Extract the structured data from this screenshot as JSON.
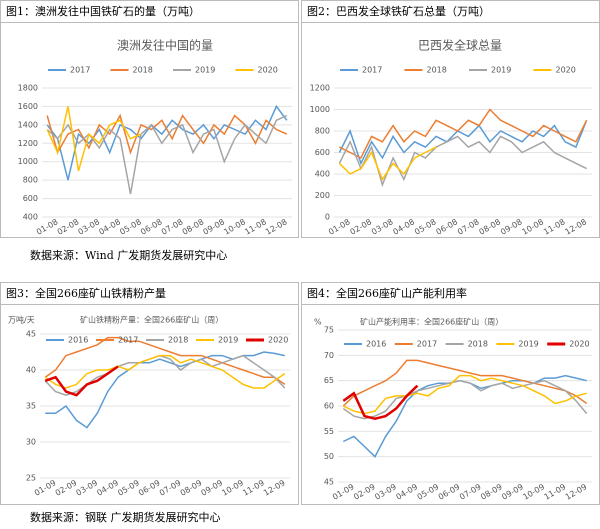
{
  "figure_headers": [
    "图1：澳洲发往中国铁矿石的量（万吨）",
    "图2：巴西发全球铁矿石总量（万吨）",
    "图3：全国266座矿山铁精粉产量",
    "图4：全国266座矿山产能利用率"
  ],
  "sources": [
    "数据来源：Wind 广发期货发展研究中心",
    "数据来源：钢联 广发期货发展研究中心"
  ],
  "chart_data": [
    {
      "type": "line",
      "title": "澳洲发往中国的量",
      "categories": [
        "01-08",
        null,
        "02-08",
        null,
        "03-08",
        null,
        "04-08",
        null,
        "05-08",
        null,
        "06-08",
        null,
        "07-08",
        null,
        "08-08",
        null,
        "09-08",
        null,
        "10-08",
        null,
        "11-08",
        null,
        "12-08",
        null
      ],
      "series": [
        {
          "name": "2017",
          "color": "#5b9bd5",
          "values": [
            1400,
            1250,
            800,
            1300,
            1200,
            1350,
            1100,
            1400,
            1350,
            1250,
            1400,
            1300,
            1450,
            1350,
            1300,
            1400,
            1250,
            1400,
            1350,
            1300,
            1450,
            1350,
            1600,
            1450
          ]
        },
        {
          "name": "2018",
          "color": "#ed7d31",
          "values": [
            1500,
            1100,
            1300,
            1350,
            1150,
            1400,
            1300,
            1500,
            1100,
            1400,
            1350,
            1450,
            1250,
            1500,
            1350,
            1200,
            1400,
            1300,
            1500,
            1400,
            1200,
            1450,
            1350,
            1300
          ]
        },
        {
          "name": "2019",
          "color": "#a5a5a5",
          "values": [
            1350,
            1250,
            1400,
            1200,
            1300,
            1150,
            1350,
            1250,
            650,
            1300,
            1400,
            1200,
            1350,
            1400,
            1100,
            1300,
            1350,
            1000,
            1250,
            1400,
            1300,
            1200,
            1450,
            1500
          ]
        },
        {
          "name": "2020",
          "color": "#ffc000",
          "values": [
            1350,
            1100,
            1600,
            900,
            1300,
            1200,
            1400,
            1450,
            1250,
            1300,
            null,
            null,
            null,
            null,
            null,
            null,
            null,
            null,
            null,
            null,
            null,
            null,
            null,
            null
          ]
        }
      ],
      "ylim": [
        400,
        1800
      ],
      "yticks": [
        400,
        600,
        800,
        1000,
        1200,
        1400,
        1600,
        1800
      ]
    },
    {
      "type": "line",
      "title": "巴西发全球总量",
      "categories": [
        "01-08",
        null,
        "02-08",
        null,
        "03-08",
        null,
        "04-08",
        null,
        "05-08",
        null,
        "06-08",
        null,
        "07-08",
        null,
        "08-08",
        null,
        "09-08",
        null,
        "10-08",
        null,
        "11-08",
        null,
        "12-08",
        null
      ],
      "series": [
        {
          "name": "2017",
          "color": "#5b9bd5",
          "values": [
            600,
            800,
            500,
            700,
            550,
            750,
            600,
            700,
            650,
            750,
            700,
            800,
            750,
            850,
            700,
            800,
            750,
            700,
            800,
            750,
            850,
            700,
            650,
            900
          ]
        },
        {
          "name": "2018",
          "color": "#ed7d31",
          "values": [
            650,
            600,
            550,
            750,
            700,
            850,
            700,
            800,
            750,
            900,
            850,
            800,
            900,
            850,
            1000,
            900,
            850,
            800,
            750,
            850,
            800,
            750,
            700,
            900
          ]
        },
        {
          "name": "2019",
          "color": "#a5a5a5",
          "values": [
            500,
            700,
            450,
            650,
            300,
            550,
            350,
            600,
            550,
            650,
            700,
            750,
            650,
            700,
            600,
            750,
            700,
            600,
            650,
            700,
            600,
            550,
            500,
            450
          ]
        },
        {
          "name": "2020",
          "color": "#ffc000",
          "values": [
            500,
            400,
            450,
            600,
            350,
            500,
            400,
            550,
            600,
            650,
            null,
            null,
            null,
            null,
            null,
            null,
            null,
            null,
            null,
            null,
            null,
            null,
            null,
            null
          ]
        }
      ],
      "ylim": [
        0,
        1200
      ],
      "yticks": [
        0,
        200,
        400,
        600,
        800,
        1000,
        1200
      ]
    },
    {
      "type": "line",
      "title": "矿山铁精粉产量：全国266座矿山（周）",
      "y_label": "万吨/天",
      "categories": [
        "01-09",
        null,
        "02-09",
        null,
        "03-09",
        null,
        "04-09",
        null,
        "05-09",
        null,
        "06-09",
        null,
        "07-09",
        null,
        "08-09",
        null,
        "09-09",
        null,
        "10-09",
        null,
        "11-09",
        null,
        "12-09",
        null
      ],
      "series": [
        {
          "name": "2016",
          "color": "#5b9bd5",
          "values": [
            34,
            34,
            35,
            33,
            32,
            34,
            37,
            39,
            40,
            41,
            41,
            41.5,
            41,
            40.5,
            41,
            41.5,
            42,
            42,
            41.5,
            42,
            42,
            42.5,
            42.3,
            42
          ]
        },
        {
          "name": "2017",
          "color": "#ed7d31",
          "values": [
            39,
            40,
            42,
            42.5,
            43,
            43.5,
            44.5,
            44.5,
            44,
            44,
            43.5,
            43,
            42.5,
            42,
            42,
            42,
            41.5,
            41,
            40.5,
            40,
            39.5,
            39,
            39,
            38
          ]
        },
        {
          "name": "2018",
          "color": "#a5a5a5",
          "values": [
            38.5,
            37,
            36.5,
            37,
            38,
            39,
            39.5,
            40.5,
            41,
            41,
            41.5,
            42,
            41.5,
            40,
            41,
            41.5,
            40.5,
            41,
            41.5,
            42,
            41,
            40,
            39,
            37.5
          ]
        },
        {
          "name": "2019",
          "color": "#ffc000",
          "values": [
            39,
            38,
            37.5,
            38,
            39.5,
            40,
            40,
            40.5,
            40,
            41,
            41.5,
            42,
            42,
            41,
            41.5,
            41,
            40.5,
            40,
            39,
            38,
            37.5,
            37.5,
            38.5,
            39.5
          ]
        },
        {
          "name": "2020",
          "color": "#e00000",
          "values": [
            38.5,
            39,
            37,
            36.5,
            38,
            38.5,
            39.5,
            40.5,
            null,
            null,
            null,
            null,
            null,
            null,
            null,
            null,
            null,
            null,
            null,
            null,
            null,
            null,
            null,
            null
          ]
        }
      ],
      "ylim": [
        25,
        45
      ],
      "yticks": [
        25,
        30,
        35,
        40,
        45
      ]
    },
    {
      "type": "line",
      "title": "矿山产能利用率：全国266座矿山（周）",
      "y_label": "%",
      "categories": [
        "01-09",
        null,
        "02-09",
        null,
        "03-09",
        null,
        "04-09",
        null,
        "05-09",
        null,
        "06-09",
        null,
        "07-09",
        null,
        "08-09",
        null,
        "09-09",
        null,
        "10-09",
        null,
        "11-09",
        null,
        "12-09",
        null
      ],
      "series": [
        {
          "name": "2016",
          "color": "#5b9bd5",
          "values": [
            53,
            54,
            52,
            50,
            54,
            57,
            61,
            63,
            64,
            64.5,
            64.5,
            65,
            64.5,
            63.5,
            64,
            64.5,
            65,
            65,
            64.5,
            65.5,
            65.5,
            66,
            65.5,
            65
          ]
        },
        {
          "name": "2017",
          "color": "#ed7d31",
          "values": [
            60,
            62,
            63,
            64,
            65,
            66.5,
            69,
            69,
            68.5,
            68,
            67.5,
            67,
            66.5,
            66,
            66,
            66,
            65.5,
            65,
            64.5,
            64,
            63.5,
            63,
            62,
            60.5
          ]
        },
        {
          "name": "2018",
          "color": "#a5a5a5",
          "values": [
            59.5,
            58,
            57.5,
            58,
            59,
            61.5,
            62,
            63,
            63.5,
            64,
            64.5,
            65,
            64.5,
            63,
            64,
            64.5,
            63.5,
            64,
            64.5,
            65,
            64,
            63,
            61,
            58.5
          ]
        },
        {
          "name": "2019",
          "color": "#ffc000",
          "values": [
            60,
            59,
            58.5,
            59,
            61.5,
            62,
            62,
            62.5,
            62,
            63.5,
            64,
            66,
            66,
            65,
            65.5,
            65,
            64.5,
            64,
            63,
            62,
            60.5,
            61,
            62,
            62.5
          ]
        },
        {
          "name": "2020",
          "color": "#e00000",
          "values": [
            61,
            62.5,
            58,
            57.5,
            58,
            59.5,
            62,
            64,
            null,
            null,
            null,
            null,
            null,
            null,
            null,
            null,
            null,
            null,
            null,
            null,
            null,
            null,
            null,
            null
          ]
        }
      ],
      "ylim": [
        45,
        75
      ],
      "yticks": [
        45,
        50,
        55,
        60,
        65,
        70,
        75
      ]
    }
  ]
}
